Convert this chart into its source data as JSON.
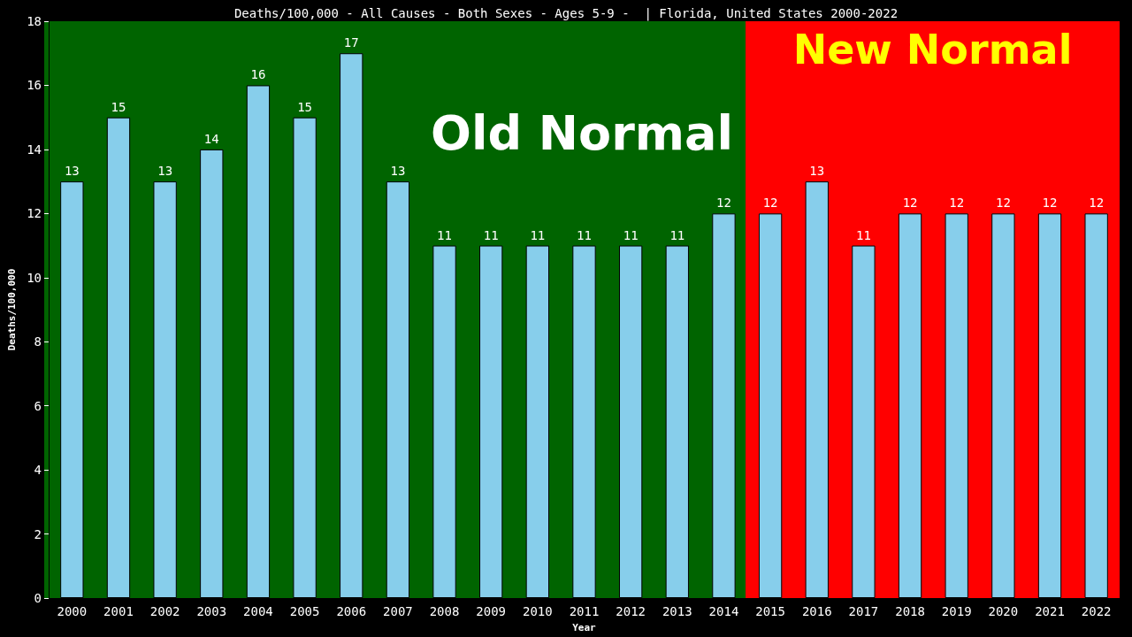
{
  "chart_data": {
    "type": "bar",
    "title": "Deaths/100,000 - All Causes - Both Sexes - Ages 5-9 -  | Florida, United States 2000-2022",
    "xlabel": "Year",
    "ylabel": "Deaths/100,000",
    "categories": [
      "2000",
      "2001",
      "2002",
      "2003",
      "2004",
      "2005",
      "2006",
      "2007",
      "2008",
      "2009",
      "2010",
      "2011",
      "2012",
      "2013",
      "2014",
      "2015",
      "2016",
      "2017",
      "2018",
      "2019",
      "2020",
      "2021",
      "2022"
    ],
    "values": [
      13,
      15,
      13,
      14,
      16,
      15,
      17,
      13,
      11,
      11,
      11,
      11,
      11,
      11,
      12,
      12,
      13,
      11,
      12,
      12,
      12,
      12,
      12
    ],
    "color": "#87ceeb",
    "ylim": [
      0,
      18
    ],
    "yticks": [
      0,
      2,
      4,
      6,
      8,
      10,
      12,
      14,
      16,
      18
    ],
    "grid": false,
    "data_labels": true,
    "bands": [
      {
        "axis": "x",
        "from": "2000",
        "to": "2014",
        "label": "Old Normal",
        "color": "#006400"
      },
      {
        "axis": "x",
        "from": "2015",
        "to": "2022",
        "label": "New Normal",
        "color": "#ff0000"
      }
    ]
  }
}
